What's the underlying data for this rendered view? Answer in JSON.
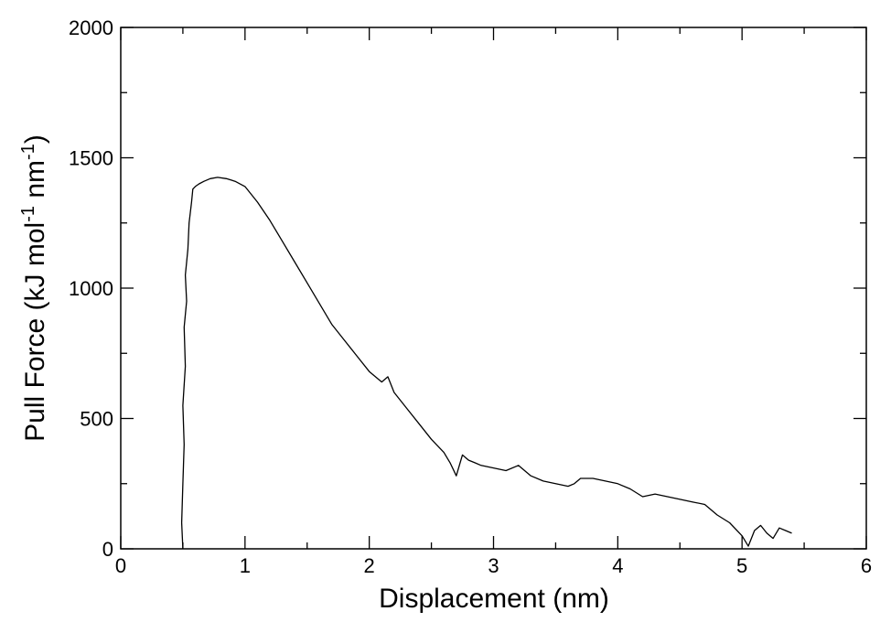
{
  "chart_data": {
    "type": "line",
    "title": "",
    "xlabel": "Displacement (nm)",
    "ylabel_parts": {
      "pre": "Pull Force (kJ mol",
      "sup1": "-1",
      "mid": " nm",
      "sup2": "-1",
      "post": ")"
    },
    "xlim": [
      0,
      6
    ],
    "ylim": [
      0,
      2000
    ],
    "x_ticks": [
      0,
      1,
      2,
      3,
      4,
      5,
      6
    ],
    "y_ticks": [
      0,
      500,
      1000,
      1500,
      2000
    ],
    "grid": false,
    "line_color": "#000000",
    "series": [
      {
        "x": [
          0.5,
          0.49,
          0.5,
          0.51,
          0.5,
          0.52,
          0.51,
          0.53,
          0.52,
          0.54,
          0.55,
          0.57,
          0.58,
          0.6,
          0.63,
          0.67,
          0.72,
          0.78,
          0.85,
          0.92,
          1.0,
          1.1,
          1.2,
          1.3,
          1.4,
          1.5,
          1.6,
          1.7,
          1.8,
          1.9,
          2.0,
          2.1,
          2.15,
          2.2,
          2.3,
          2.4,
          2.5,
          2.6,
          2.65,
          2.7,
          2.75,
          2.8,
          2.85,
          2.9,
          3.0,
          3.1,
          3.2,
          3.3,
          3.4,
          3.5,
          3.6,
          3.65,
          3.7,
          3.8,
          3.9,
          4.0,
          4.1,
          4.2,
          4.3,
          4.4,
          4.5,
          4.6,
          4.7,
          4.8,
          4.9,
          5.0,
          5.05,
          5.1,
          5.15,
          5.2,
          5.25,
          5.3,
          5.35,
          5.4
        ],
        "y": [
          0,
          100,
          250,
          400,
          550,
          700,
          850,
          950,
          1050,
          1150,
          1250,
          1330,
          1380,
          1390,
          1400,
          1410,
          1420,
          1425,
          1420,
          1410,
          1390,
          1330,
          1260,
          1180,
          1100,
          1020,
          940,
          860,
          800,
          740,
          680,
          640,
          660,
          600,
          540,
          480,
          420,
          370,
          330,
          280,
          360,
          340,
          330,
          320,
          310,
          300,
          320,
          280,
          260,
          250,
          240,
          250,
          270,
          270,
          260,
          250,
          230,
          200,
          210,
          200,
          190,
          180,
          170,
          130,
          100,
          50,
          10,
          70,
          90,
          60,
          40,
          80,
          70,
          60
        ]
      }
    ]
  }
}
